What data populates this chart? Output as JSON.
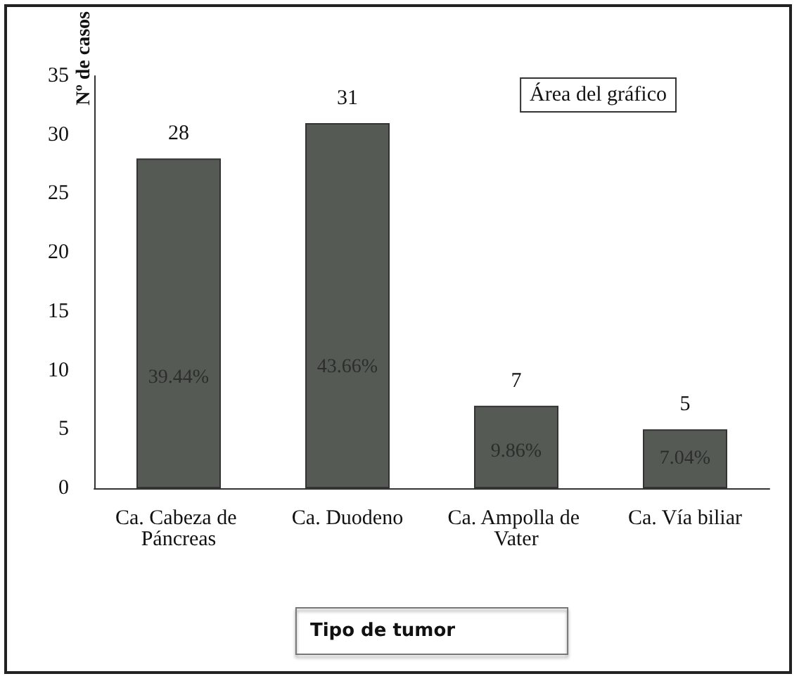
{
  "chart_data": {
    "type": "bar",
    "xlabel": "Tipo de tumor",
    "ylabel": "Nº de casos",
    "categories": [
      "Ca. Cabeza de Páncreas",
      "Ca. Duodeno",
      "Ca. Ampolla de Vater",
      "Ca. Vía biliar"
    ],
    "values": [
      28,
      31,
      7,
      5
    ],
    "color": "#555a55",
    "ylim": [
      0,
      35
    ],
    "yticks": [
      0,
      5,
      10,
      15,
      20,
      25,
      30,
      35
    ],
    "grid": false,
    "value_labels": [
      "28",
      "31",
      "7",
      "5"
    ],
    "annotations": [
      "39.44%",
      "43.66%",
      "9.86%",
      "7.04%",
      "Área del gráfico"
    ]
  }
}
